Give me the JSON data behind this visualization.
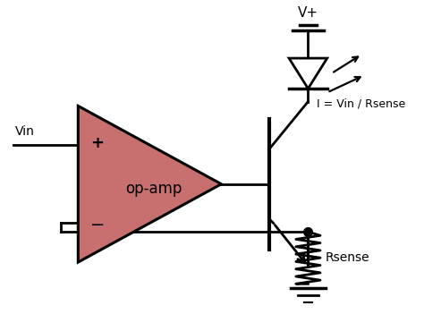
{
  "bg_color": "#ffffff",
  "line_color": "#000000",
  "opamp_fill": "#c87070",
  "opamp_outline": "#000000",
  "text_color": "#000000",
  "labels": {
    "vin": "Vin",
    "plus": "+",
    "minus": "−",
    "opamp": "op-amp",
    "vplus": "V+",
    "current": "I = Vin / Rsense",
    "rsense": "Rsense"
  },
  "figsize": [
    4.74,
    3.7
  ],
  "dpi": 100
}
